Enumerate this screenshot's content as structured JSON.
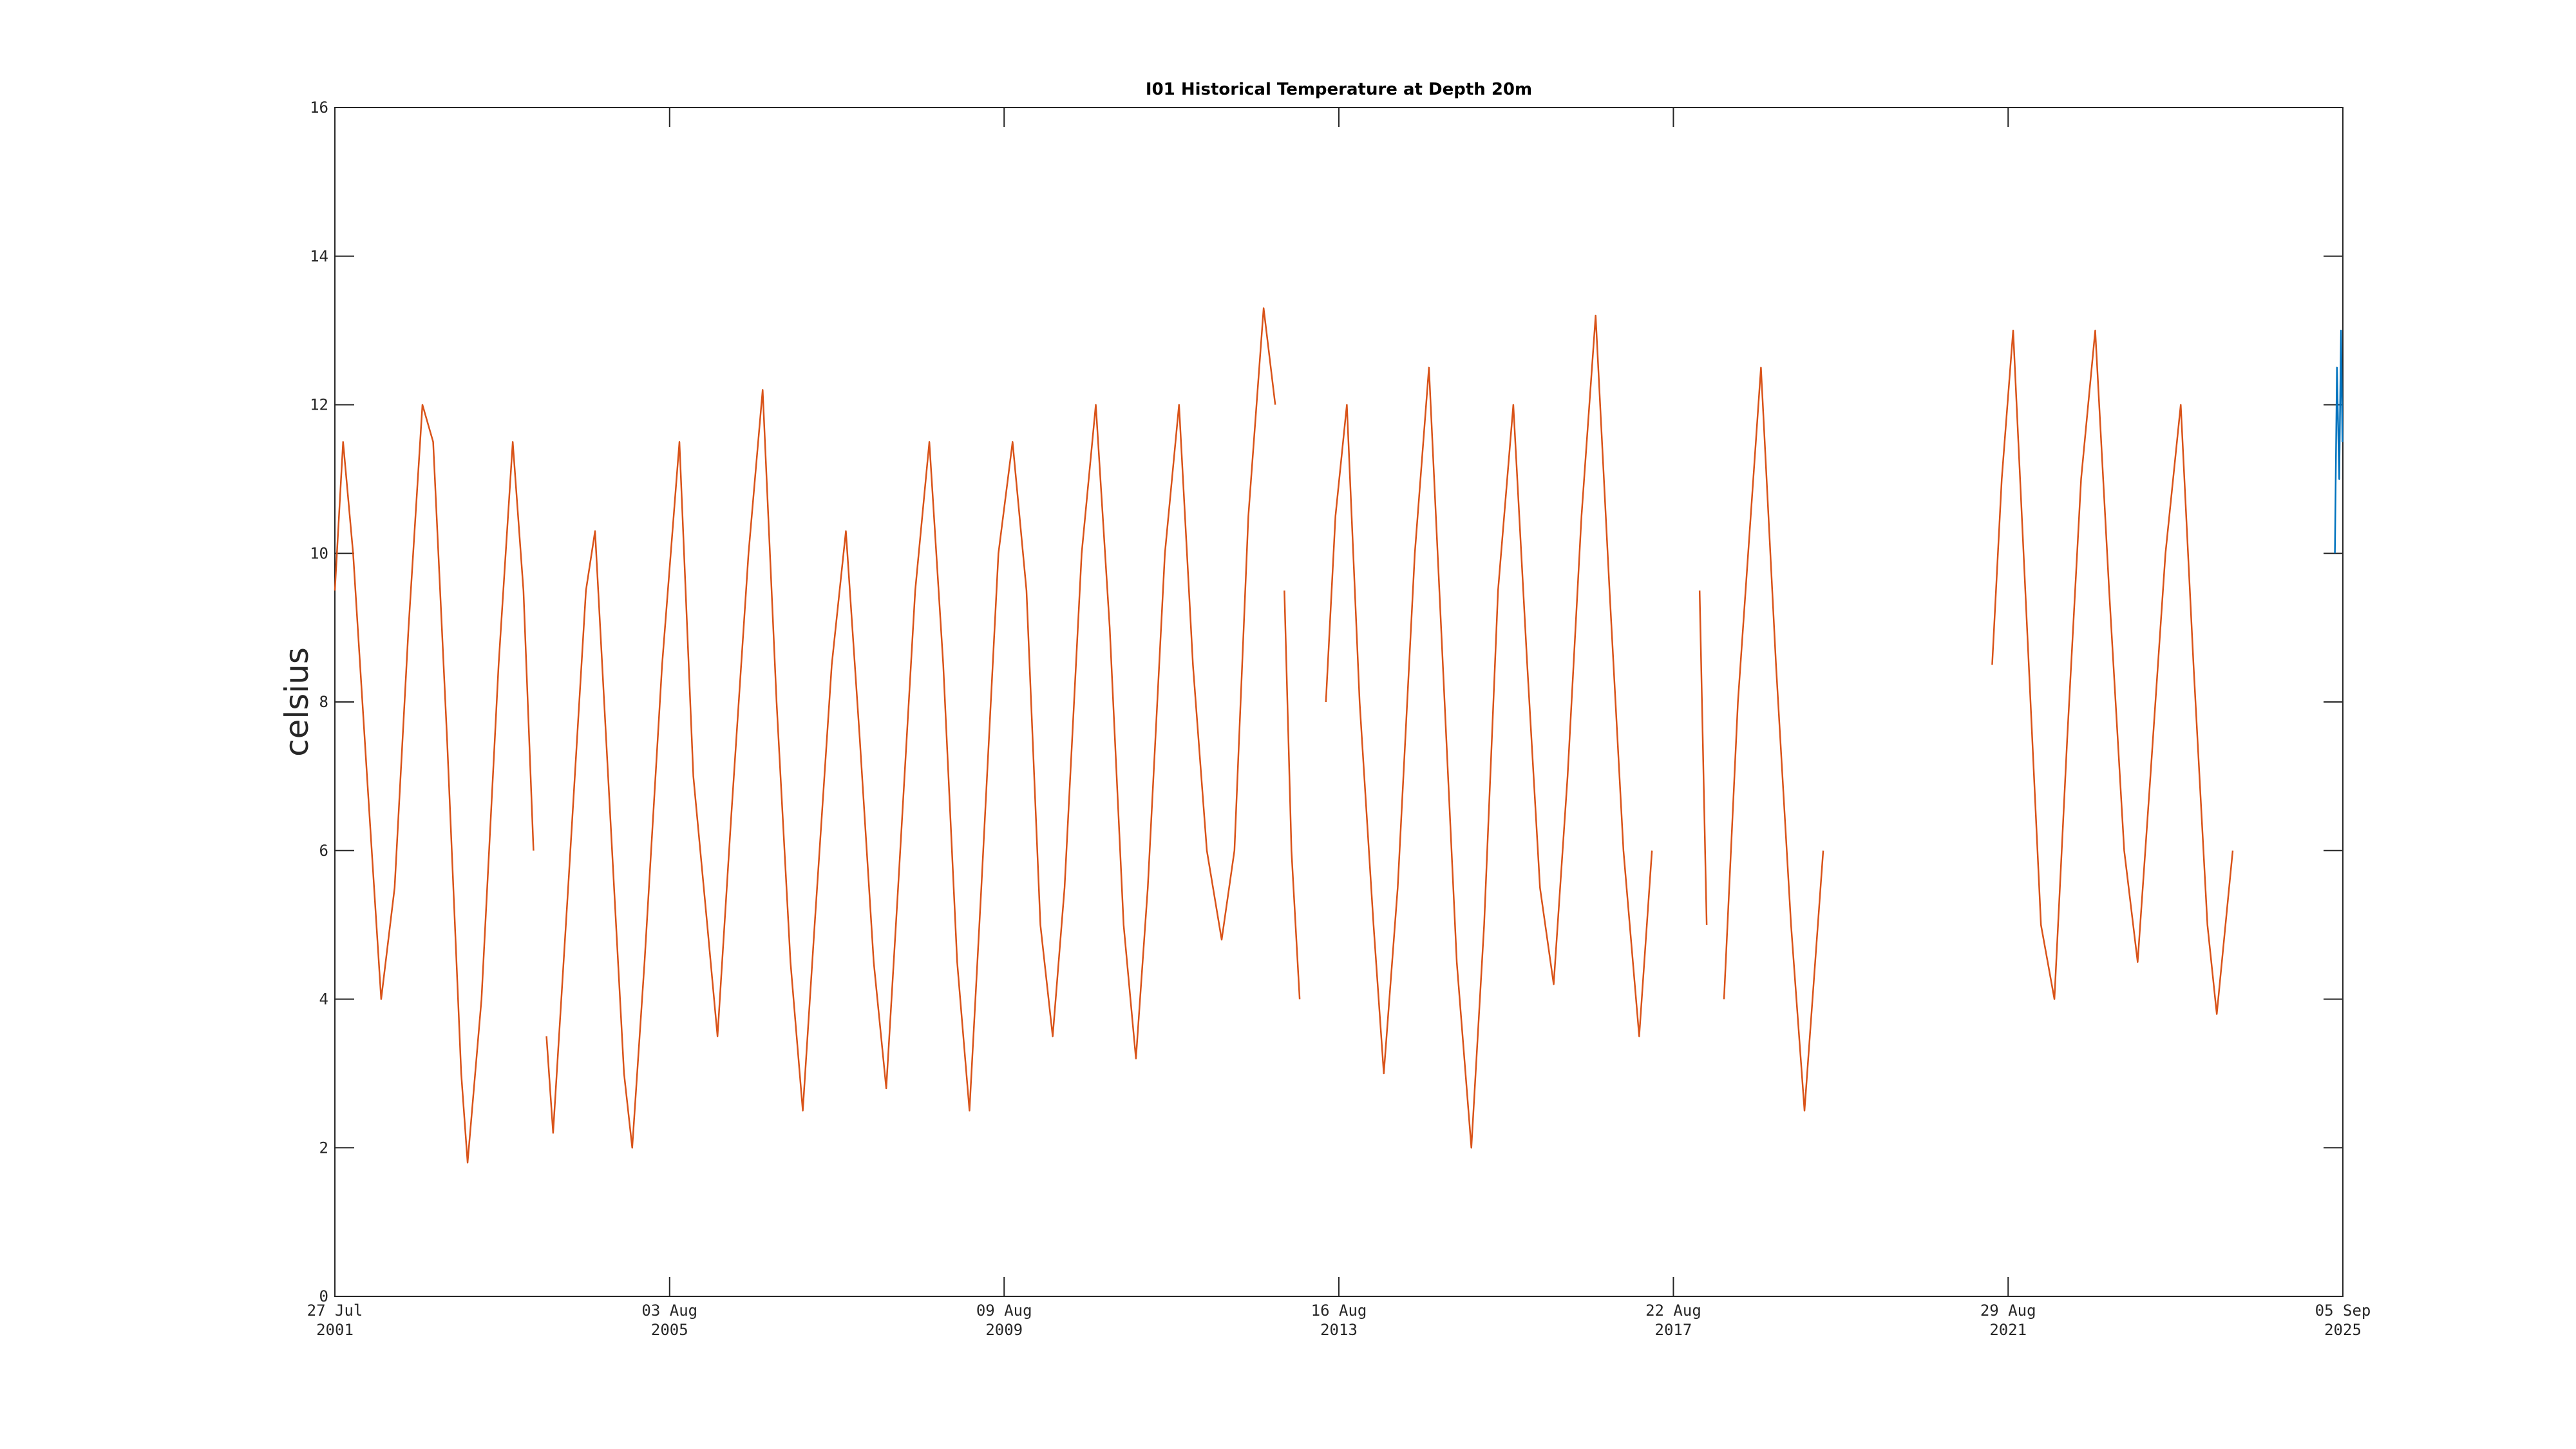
{
  "chart_data": {
    "type": "line",
    "title": "I01 Historical Temperature at Depth 20m",
    "y_label": "celsius",
    "xlim": [
      "2001-07-27",
      "2025-09-05"
    ],
    "xticks": [
      {
        "value": "2001-07-27",
        "label": [
          "27 Jul",
          "2001"
        ]
      },
      {
        "value": "2005-08-03",
        "label": [
          "03 Aug",
          "2005"
        ]
      },
      {
        "value": "2009-08-09",
        "label": [
          "09 Aug",
          "2009"
        ]
      },
      {
        "value": "2013-08-16",
        "label": [
          "16 Aug",
          "2013"
        ]
      },
      {
        "value": "2017-08-22",
        "label": [
          "22 Aug",
          "2017"
        ]
      },
      {
        "value": "2021-08-29",
        "label": [
          "29 Aug",
          "2021"
        ]
      },
      {
        "value": "2025-09-05",
        "label": [
          "05 Sep",
          "2025"
        ]
      }
    ],
    "ylim": [
      0,
      16
    ],
    "yticks": [
      0,
      2,
      4,
      6,
      8,
      10,
      12,
      14,
      16
    ],
    "grid": false,
    "series": [
      {
        "color": "#d95319",
        "x": [
          "2001-07-27",
          "2001-09-01",
          "2001-10-15",
          "2001-12-15",
          "2002-02-15",
          "2002-04-15",
          "2002-06-15",
          "2002-08-15",
          "2002-10-01",
          "2002-12-01",
          "2003-02-01",
          "2003-03-01",
          "2003-05-01",
          "2003-07-15",
          "2003-09-15",
          "2003-11-01",
          "2003-12-15",
          "2004-01-15",
          "2004-02-10",
          "2004-03-10",
          "2004-05-15",
          "2004-08-01",
          "2004-09-10",
          "2004-11-15",
          "2005-01-15",
          "2005-02-20",
          "2005-04-15",
          "2005-07-01",
          "2005-09-15",
          "2005-11-15",
          "2006-01-15",
          "2006-03-01",
          "2006-05-01",
          "2006-07-15",
          "2006-09-15",
          "2006-11-15",
          "2007-01-15",
          "2007-03-10",
          "2007-05-01",
          "2007-07-15",
          "2007-09-15",
          "2007-11-15",
          "2008-01-15",
          "2008-03-10",
          "2008-05-01",
          "2008-07-15",
          "2008-09-15",
          "2008-11-15",
          "2009-01-15",
          "2009-03-10",
          "2009-05-01",
          "2009-07-15",
          "2009-09-15",
          "2009-11-15",
          "2010-01-15",
          "2010-03-10",
          "2010-05-01",
          "2010-07-15",
          "2010-09-15",
          "2010-11-15",
          "2011-01-15",
          "2011-03-10",
          "2011-05-01",
          "2011-07-15",
          "2011-09-15",
          "2011-11-15",
          "2012-01-15",
          "2012-03-20",
          "2012-05-15",
          "2012-07-15",
          "2012-09-20",
          "2012-11-10",
          "2012-12-01",
          "2012-12-20",
          "2013-01-20",
          "2013-02-25",
          "2013-04-01",
          "2013-06-20",
          "2013-08-01",
          "2013-09-20",
          "2013-11-15",
          "2014-01-15",
          "2014-03-01",
          "2014-05-01",
          "2014-07-15",
          "2014-09-15",
          "2014-11-15",
          "2015-01-15",
          "2015-03-20",
          "2015-05-15",
          "2015-07-15",
          "2015-09-20",
          "2015-11-20",
          "2016-01-15",
          "2016-03-15",
          "2016-05-15",
          "2016-07-15",
          "2016-09-15",
          "2016-11-15",
          "2017-01-15",
          "2017-03-25",
          "2017-05-20",
          "2017-07-01",
          "2017-12-15",
          "2018-01-15",
          "2018-03-01",
          "2018-04-01",
          "2018-06-01",
          "2018-09-10",
          "2018-11-15",
          "2019-01-20",
          "2019-03-20",
          "2019-06-10",
          "2019-07-01",
          "2021-06-20",
          "2021-08-01",
          "2021-09-20",
          "2021-11-20",
          "2022-01-20",
          "2022-03-20",
          "2022-05-15",
          "2022-07-15",
          "2022-09-15",
          "2022-11-15",
          "2023-01-20",
          "2023-03-20",
          "2023-05-15",
          "2023-07-20",
          "2023-09-25",
          "2023-11-20",
          "2024-01-20",
          "2024-03-01",
          "2024-05-10"
        ],
        "values": [
          9.5,
          11.5,
          10,
          7,
          4,
          5.5,
          9,
          12,
          11.5,
          7.5,
          3,
          1.8,
          4,
          8.5,
          11.5,
          9.5,
          6,
          null,
          3.5,
          2.2,
          5.5,
          9.5,
          10.3,
          6.5,
          3,
          2,
          4.5,
          8.5,
          11.5,
          7,
          5,
          3.5,
          6.5,
          10,
          12.2,
          8,
          4.5,
          2.5,
          5,
          8.5,
          10.3,
          7.5,
          4.5,
          2.8,
          5.5,
          9.5,
          11.5,
          8.5,
          4.5,
          2.5,
          5.5,
          10,
          11.5,
          9.5,
          5,
          3.5,
          5.5,
          10,
          12,
          9,
          5,
          3.2,
          5.5,
          10,
          12,
          8.5,
          6,
          4.8,
          6,
          10.5,
          13.3,
          12,
          null,
          9.5,
          6,
          4,
          null,
          8,
          10.5,
          12,
          8,
          5,
          3,
          5.5,
          10,
          12.5,
          8.5,
          4.5,
          2,
          5,
          9.5,
          12,
          8.5,
          5.5,
          4.2,
          7,
          10.5,
          13.2,
          9.5,
          6,
          3.5,
          6,
          null,
          9.5,
          5,
          null,
          4,
          8,
          12.5,
          8.5,
          5,
          2.5,
          6,
          null,
          8.5,
          11,
          13,
          9,
          5,
          4,
          7.5,
          11,
          13,
          9.5,
          6,
          4.5,
          7,
          10,
          12,
          8.5,
          5,
          3.8,
          6
        ]
      },
      {
        "color": "#0072bd",
        "x": [
          "2025-08-01",
          "2025-08-10",
          "2025-08-20",
          "2025-08-28",
          "2025-09-03"
        ],
        "values": [
          10,
          12.5,
          11,
          13,
          11.5
        ]
      }
    ]
  }
}
